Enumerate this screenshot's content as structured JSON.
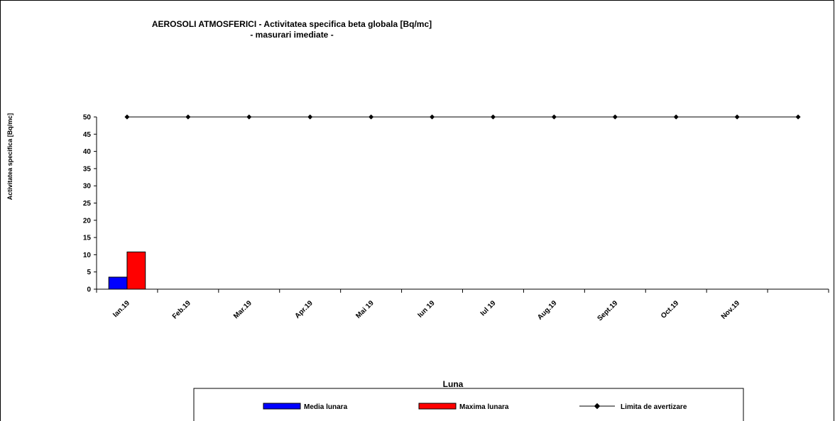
{
  "chart_data": {
    "type": "bar",
    "title": "AEROSOLI  ATMOSFERICI - Activitatea specifica beta globala [Bq/mc]",
    "subtitle": "- masurari imediate -",
    "xlabel": "Luna",
    "ylabel": "Activitatea  specifica  [Bq/mc]",
    "ylim": [
      0,
      50
    ],
    "yticks": [
      0,
      5,
      10,
      15,
      20,
      25,
      30,
      35,
      40,
      45,
      50
    ],
    "categories": [
      "Ian.19",
      "Feb.19",
      "Mar.19",
      "Apr.19",
      "Mai 19",
      "Iun 19",
      "Iul 19",
      "Aug.19",
      "Sept.19",
      "Oct.19",
      "Nov.19",
      ""
    ],
    "series": [
      {
        "name": "Media lunara",
        "kind": "bar",
        "color": "#0000FF",
        "values": [
          3.5,
          null,
          null,
          null,
          null,
          null,
          null,
          null,
          null,
          null,
          null,
          null
        ]
      },
      {
        "name": "Maxima lunara",
        "kind": "bar",
        "color": "#FF0000",
        "values": [
          10.8,
          null,
          null,
          null,
          null,
          null,
          null,
          null,
          null,
          null,
          null,
          null
        ]
      },
      {
        "name": "Limita de avertizare",
        "kind": "line",
        "color": "#000000",
        "values": [
          50,
          50,
          50,
          50,
          50,
          50,
          50,
          50,
          50,
          50,
          50,
          50
        ]
      }
    ],
    "legend": "bottom",
    "grid": false
  }
}
